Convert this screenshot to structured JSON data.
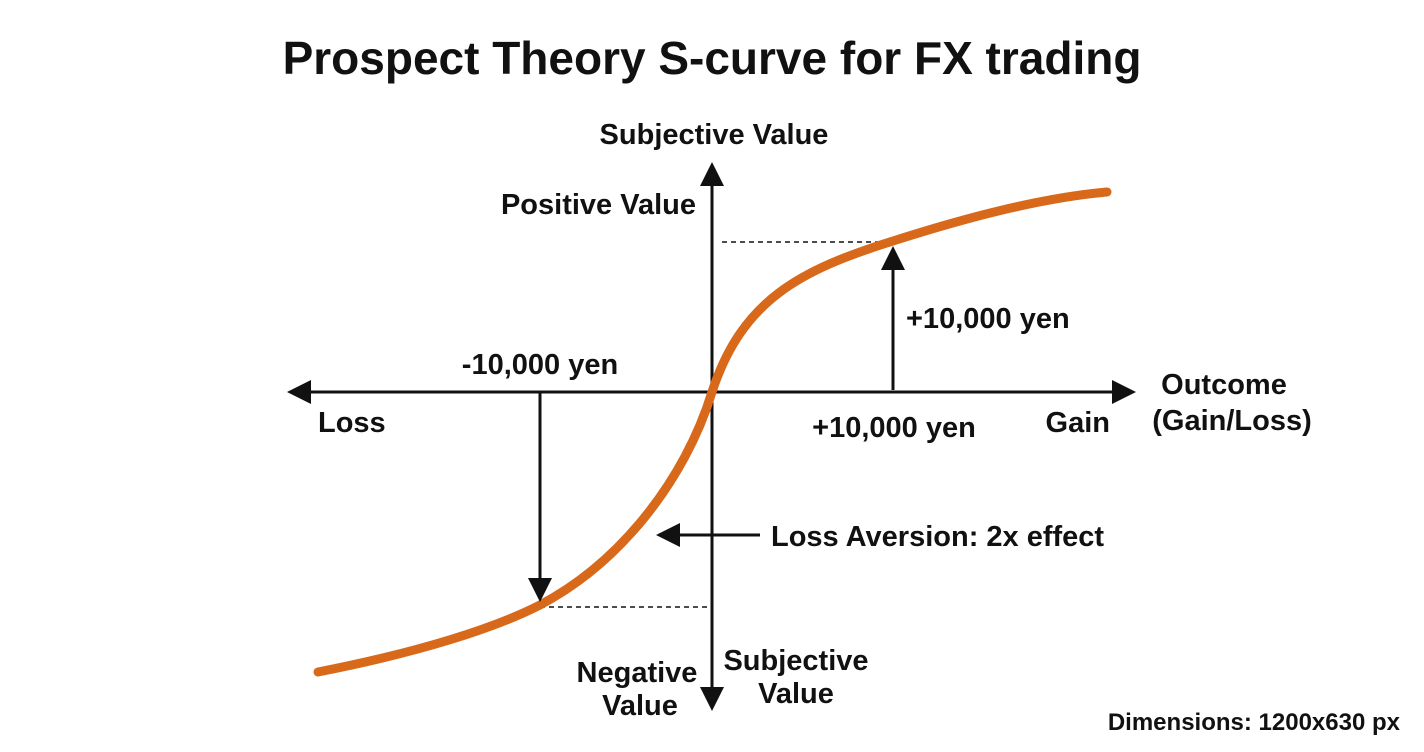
{
  "title": "Prospect Theory S-curve for FX trading",
  "y_axis": {
    "label": "Subjective Value",
    "positive": "Positive Value",
    "negative_lines": [
      "Negative",
      "Value"
    ],
    "bottom_label_lines": [
      "Subjective",
      "Value"
    ]
  },
  "x_axis": {
    "label_lines": [
      "Outcome",
      "(Gain/Loss)"
    ],
    "gain": "Gain",
    "loss": "Loss"
  },
  "annotations": {
    "gain_x": "+10,000 yen",
    "gain_y": "+10,000 yen",
    "loss_x": "-10,000 yen",
    "loss_aversion": "Loss Aversion: 2x effect"
  },
  "footer": "Dimensions: 1200x630 px"
}
